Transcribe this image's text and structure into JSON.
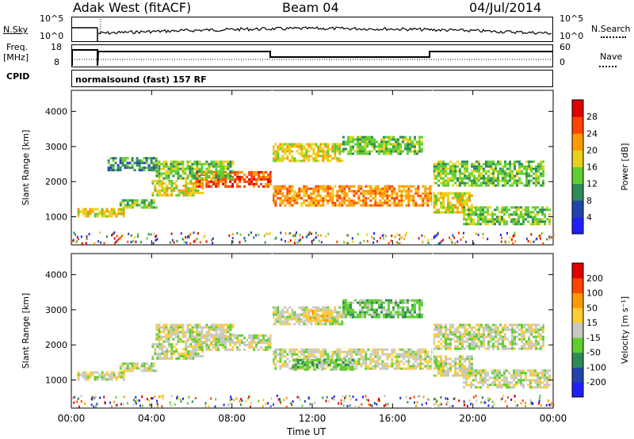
{
  "header": {
    "station": "Adak West (fitACF)",
    "beam": "Beam 04",
    "date": "04/Jul/2014"
  },
  "top_panels": {
    "nsky_label": "N.Sky",
    "nsky_ticks": [
      "10^5",
      "10^0"
    ],
    "nsearch_label": "N.Search",
    "nsearch_ticks": [
      "10^5",
      "10^0"
    ],
    "freq_label_1": "Freq.",
    "freq_label_2": "[MHz]",
    "freq_ticks": [
      "18",
      "8"
    ],
    "nave_label": "Nave",
    "nave_ticks": [
      "60",
      "0"
    ],
    "cpid_label": "CPID",
    "cpid_text": "normalsound (fast) 157 RF"
  },
  "chart_data": [
    {
      "type": "heatmap",
      "title": "",
      "xlabel": "Time UT",
      "ylabel": "Slant Range [km]",
      "x_ticks": [
        "00:00",
        "04:00",
        "08:00",
        "12:00",
        "16:00",
        "20:00",
        "00:00"
      ],
      "y_ticks": [
        1000,
        2000,
        3000,
        4000
      ],
      "ylim": [
        200,
        4600
      ],
      "colorbar": {
        "label": "Power [dB]",
        "ticks": [
          4,
          8,
          12,
          16,
          20,
          24,
          28
        ],
        "colors": [
          "#1e1eff",
          "#2244aa",
          "#2e8b57",
          "#5fcf30",
          "#e8d11a",
          "#ff9900",
          "#ff4400",
          "#e00000"
        ]
      },
      "bands": [
        {
          "t0": 0.3,
          "t1": 2.6,
          "r0": 1000,
          "r1": 1250,
          "level": 4
        },
        {
          "t0": 2.4,
          "t1": 4.2,
          "r0": 1250,
          "r1": 1500,
          "level": 3
        },
        {
          "t0": 4.0,
          "t1": 6.5,
          "r0": 1600,
          "r1": 2050,
          "level": 4
        },
        {
          "t0": 6.2,
          "t1": 9.9,
          "r0": 1850,
          "r1": 2300,
          "level": 6
        },
        {
          "t0": 4.2,
          "t1": 8.0,
          "r0": 2100,
          "r1": 2600,
          "level": 3
        },
        {
          "t0": 1.8,
          "t1": 4.2,
          "r0": 2300,
          "r1": 2700,
          "level": 2
        },
        {
          "t0": 10.0,
          "t1": 18.0,
          "r0": 1300,
          "r1": 1900,
          "level": 5
        },
        {
          "t0": 10.0,
          "t1": 13.5,
          "r0": 2600,
          "r1": 3100,
          "level": 4
        },
        {
          "t0": 13.5,
          "t1": 17.5,
          "r0": 2800,
          "r1": 3300,
          "level": 3
        },
        {
          "t0": 18.0,
          "t1": 20.0,
          "r0": 1100,
          "r1": 1700,
          "level": 4
        },
        {
          "t0": 19.5,
          "t1": 23.8,
          "r0": 800,
          "r1": 1300,
          "level": 3
        },
        {
          "t0": 18.0,
          "t1": 23.5,
          "r0": 1900,
          "r1": 2600,
          "level": 3
        }
      ]
    },
    {
      "type": "heatmap",
      "title": "",
      "xlabel": "Time UT",
      "ylabel": "Slant Range [km]",
      "x_ticks": [
        "00:00",
        "04:00",
        "08:00",
        "12:00",
        "16:00",
        "20:00",
        "00:00"
      ],
      "y_ticks": [
        1000,
        2000,
        3000,
        4000
      ],
      "ylim": [
        200,
        4600
      ],
      "colorbar": {
        "label": "Velocity [m s⁻¹]",
        "ticks": [
          200,
          100,
          50,
          15,
          -15,
          -50,
          -100,
          -200
        ],
        "colors": [
          "#1e1eff",
          "#2244aa",
          "#2e8b57",
          "#5fcf30",
          "#c8c8c0",
          "#ffcc33",
          "#ff9900",
          "#ff4400",
          "#e00000"
        ]
      },
      "bands": [
        {
          "t0": 0.3,
          "t1": 2.6,
          "r0": 1000,
          "r1": 1250,
          "level": 4
        },
        {
          "t0": 2.4,
          "t1": 4.2,
          "r0": 1250,
          "r1": 1500,
          "level": 4
        },
        {
          "t0": 4.0,
          "t1": 6.5,
          "r0": 1600,
          "r1": 2050,
          "level": 4
        },
        {
          "t0": 6.2,
          "t1": 9.9,
          "r0": 1850,
          "r1": 2300,
          "level": 4
        },
        {
          "t0": 4.2,
          "t1": 8.0,
          "r0": 2100,
          "r1": 2600,
          "level": 4
        },
        {
          "t0": 10.0,
          "t1": 18.0,
          "r0": 1300,
          "r1": 1900,
          "level": 4
        },
        {
          "t0": 11.0,
          "t1": 14.0,
          "r0": 1300,
          "r1": 1600,
          "level": 3
        },
        {
          "t0": 10.0,
          "t1": 13.5,
          "r0": 2600,
          "r1": 3100,
          "level": 4
        },
        {
          "t0": 11.5,
          "t1": 13.0,
          "r0": 2700,
          "r1": 3000,
          "level": 5
        },
        {
          "t0": 13.5,
          "t1": 17.5,
          "r0": 2800,
          "r1": 3300,
          "level": 3
        },
        {
          "t0": 18.0,
          "t1": 20.0,
          "r0": 1100,
          "r1": 1700,
          "level": 4
        },
        {
          "t0": 19.5,
          "t1": 23.8,
          "r0": 800,
          "r1": 1300,
          "level": 4
        },
        {
          "t0": 18.0,
          "t1": 23.5,
          "r0": 1900,
          "r1": 2600,
          "level": 4
        }
      ]
    }
  ]
}
